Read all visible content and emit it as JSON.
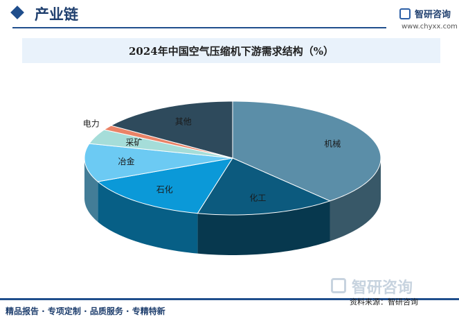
{
  "header": {
    "section_title": "产业链",
    "logo_text": "智研咨询",
    "logo_url": "www.chyxx.com"
  },
  "watermark": {
    "logo_text": "智研咨询"
  },
  "chart_data": {
    "type": "pie",
    "title": "2024年中国空气压缩机下游需求结构（%）",
    "style": "3d",
    "slices": [
      {
        "label": "机械",
        "value": 38.6,
        "color": "#5b8ea8"
      },
      {
        "label": "化工",
        "value": 15.2,
        "color": "#0c5a7e"
      },
      {
        "label": "石化",
        "value": 14.4,
        "color": "#0b99d8"
      },
      {
        "label": "冶金",
        "value": 10.9,
        "color": "#6ccaf3"
      },
      {
        "label": "采矿",
        "value": 4.2,
        "color": "#a5ddd9"
      },
      {
        "label": "电力",
        "value": 1.4,
        "color": "#ea8367"
      },
      {
        "label": "其他",
        "value": 15.3,
        "color": "#2e4a5c"
      }
    ]
  },
  "footer": {
    "left_text": "精品报告 · 专项定制 · 品质服务 · 专精特新",
    "source": "资料来源：智研咨询"
  }
}
